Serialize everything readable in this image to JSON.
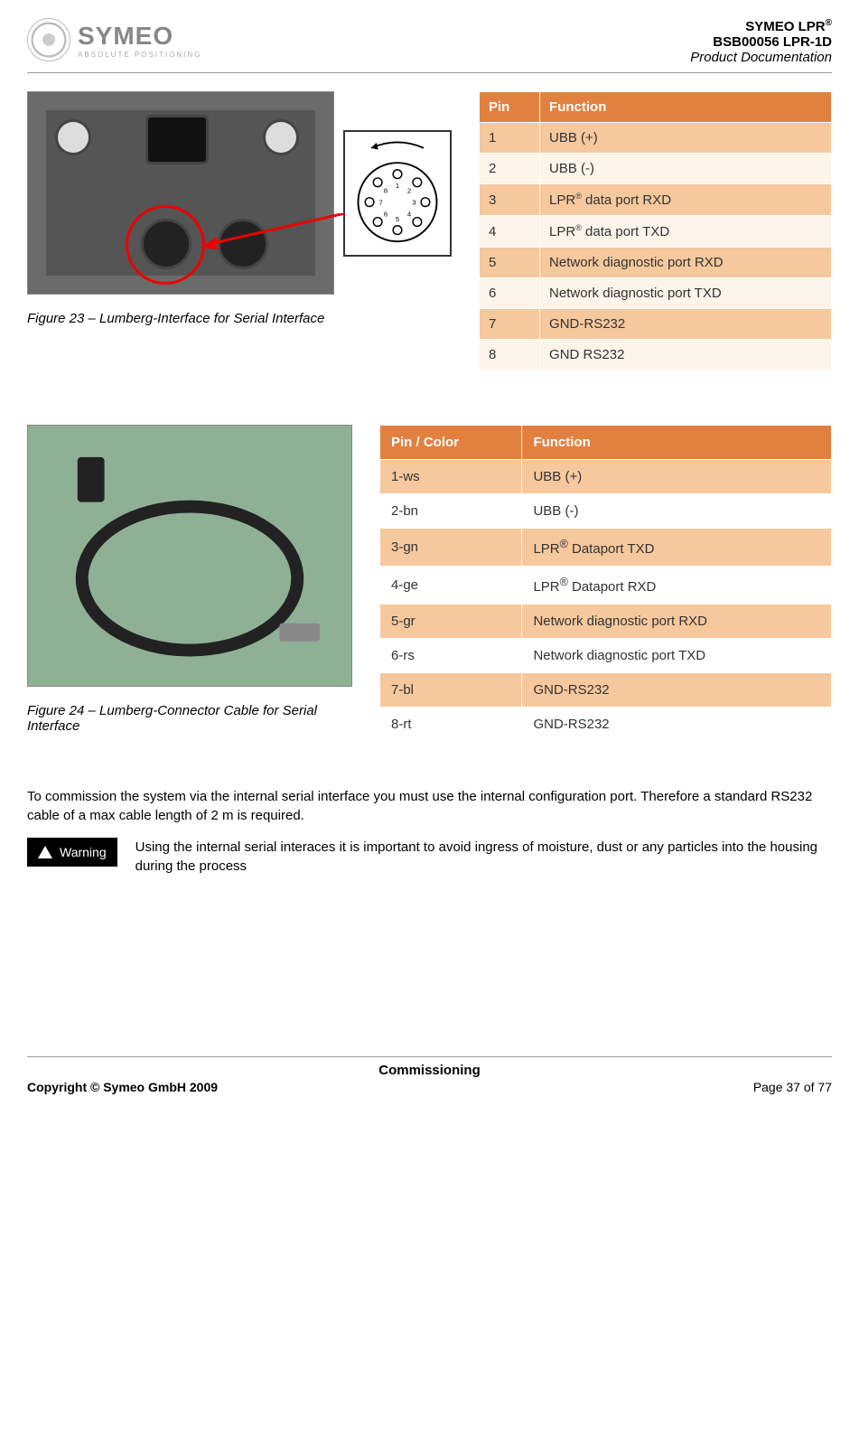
{
  "header": {
    "logo_name": "SYMEO",
    "logo_tagline": "ABSOLUTE POSITIONING",
    "line1_pre": "SYMEO LPR",
    "line1_sup": "®",
    "line2": "BSB00056 LPR-1D",
    "line3": "Product Documentation"
  },
  "table1": {
    "columns": [
      "Pin",
      "Function"
    ],
    "header_bg": "#e2813f",
    "header_fg": "#ffffff",
    "row_odd_bg": "#f6c89d",
    "row_even_bg": "#fdf4ea",
    "rows": [
      {
        "pin": "1",
        "func_pre": "UBB (+)",
        "sup": ""
      },
      {
        "pin": "2",
        "func_pre": "UBB (-)",
        "sup": ""
      },
      {
        "pin": "3",
        "func_pre": "LPR",
        "sup": "®",
        "func_post": " data port RXD"
      },
      {
        "pin": "4",
        "func_pre": "LPR",
        "sup": "®",
        "func_post": " data port TXD"
      },
      {
        "pin": "5",
        "func_pre": "Network diagnostic port RXD",
        "sup": ""
      },
      {
        "pin": "6",
        "func_pre": "Network diagnostic port TXD",
        "sup": ""
      },
      {
        "pin": "7",
        "func_pre": "GND-RS232",
        "sup": ""
      },
      {
        "pin": "8",
        "func_pre": "GND RS232",
        "sup": ""
      }
    ]
  },
  "fig23_caption": "Figure 23 – Lumberg-Interface for Serial Interface",
  "table2": {
    "columns": [
      "Pin  / Color",
      "Function"
    ],
    "header_bg": "#e2813f",
    "header_fg": "#ffffff",
    "row_odd_bg": "#f6c89d",
    "row_even_bg": "#ffffff",
    "rows": [
      {
        "pin": "1-ws",
        "func_pre": "UBB (+)",
        "sup": ""
      },
      {
        "pin": "2-bn",
        "func_pre": "UBB (-)",
        "sup": ""
      },
      {
        "pin": "3-gn",
        "func_pre": "LPR",
        "sup": "®",
        "func_post": " Dataport TXD"
      },
      {
        "pin": "4-ge",
        "func_pre": "LPR",
        "sup": "®",
        "func_post": " Dataport RXD"
      },
      {
        "pin": "5-gr",
        "func_pre": "Network diagnostic port RXD",
        "sup": ""
      },
      {
        "pin": "6-rs",
        "func_pre": "Network diagnostic port TXD",
        "sup": ""
      },
      {
        "pin": "7-bl",
        "func_pre": "GND-RS232",
        "sup": ""
      },
      {
        "pin": "8-rt",
        "func_pre": "GND-RS232",
        "sup": ""
      }
    ]
  },
  "fig24_caption": "Figure 24 – Lumberg-Connector Cable for Serial Interface",
  "paragraph": "To commission the system via the internal serial interface you must use the internal configuration port. Therefore a standard RS232 cable of a max cable length of 2 m is required.",
  "warning_label": "Warning",
  "warning_text": "Using the internal serial interaces it is important to avoid ingress of moisture, dust or any particles into the housing during the process",
  "footer": {
    "center": "Commissioning",
    "left": "Copyright © Symeo GmbH 2009",
    "right": "Page 37 of 77"
  },
  "pin_diagram": {
    "pins": [
      "1",
      "2",
      "3",
      "4",
      "5",
      "6",
      "7",
      "8"
    ]
  }
}
